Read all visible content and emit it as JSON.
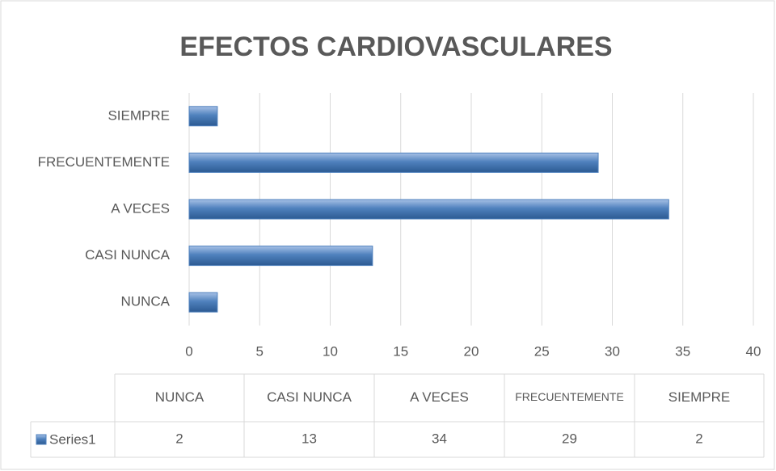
{
  "chart_data": {
    "type": "bar",
    "orientation": "horizontal",
    "title": "EFECTOS CARDIOVASCULARES",
    "categories": [
      "NUNCA",
      "CASI NUNCA",
      "A VECES",
      "FRECUENTEMENTE",
      "SIEMPRE"
    ],
    "series": [
      {
        "name": "Series1",
        "color": "#4f81bd",
        "values": [
          2,
          13,
          34,
          29,
          2
        ]
      }
    ],
    "xlim": [
      0,
      40
    ],
    "xticks": [
      0,
      5,
      10,
      15,
      20,
      25,
      30,
      35,
      40
    ],
    "grid": true,
    "data_table": true
  }
}
